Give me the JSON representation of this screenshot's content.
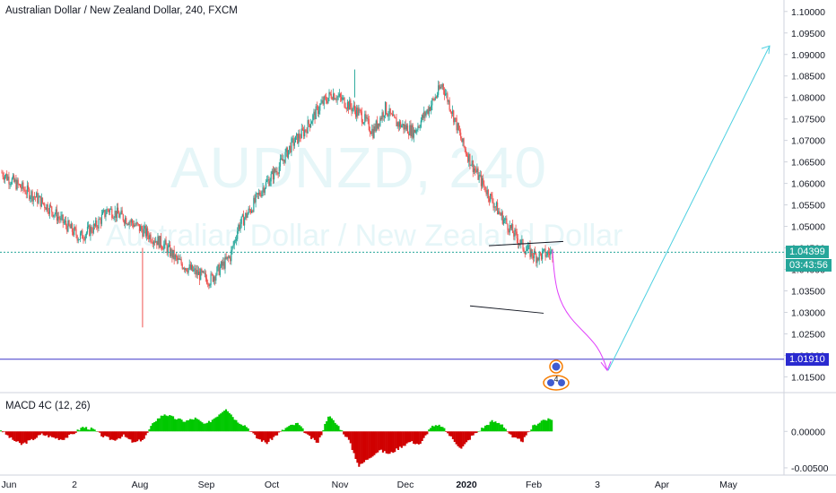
{
  "header": {
    "title": "Australian Dollar / New Zealand Dollar, 240, FXCM",
    "macd_label": "MACD 4C (12, 26)"
  },
  "watermark": {
    "symbol": "AUDNZD, 240",
    "name": "Australian Dollar / New Zealand Dollar"
  },
  "price_tags": {
    "last_price": "1.04399",
    "countdown": "03:43:56",
    "target": "1.01910"
  },
  "event_badge": "4",
  "colors": {
    "up": "#26a69a",
    "down": "#ef5350",
    "support_line": "#3f37c9",
    "projection_down": "#e040fb",
    "projection_up": "#4dd0e1",
    "macd_up": "#00c800",
    "macd_down": "#d00000",
    "last_price_tag": "#26a69a",
    "countdown_tag": "#26a69a",
    "target_tag": "#2a2ad0"
  },
  "chart_data": [
    {
      "type": "line",
      "subtype": "candlestick",
      "title": "Australian Dollar / New Zealand Dollar, 240, FXCM",
      "y_ticks": [
        "1.10000",
        "1.09500",
        "1.09000",
        "1.08500",
        "1.08000",
        "1.07500",
        "1.07000",
        "1.06500",
        "1.06000",
        "1.05500",
        "1.05000",
        "1.04500",
        "1.04000",
        "1.03500",
        "1.03000",
        "1.02500",
        "1.02000",
        "1.01500"
      ],
      "x_ticks": [
        "Jun",
        "2",
        "Aug",
        "Sep",
        "Oct",
        "Nov",
        "Dec",
        "2020",
        "Feb",
        "3",
        "Apr",
        "May"
      ],
      "ylim": [
        1.013,
        1.101
      ],
      "series": [
        {
          "x_index": [
            0,
            4,
            8,
            12,
            15,
            19,
            23,
            26,
            31,
            36,
            40,
            43,
            47,
            51,
            56,
            58,
            61,
            64,
            68,
            71,
            74,
            78,
            81,
            84,
            88,
            91,
            94,
            96,
            101,
            105,
            108,
            111,
            113,
            116,
            119,
            122,
            125,
            128,
            131,
            135
          ],
          "values": [
            1.0625,
            1.0595,
            1.057,
            1.054,
            1.051,
            1.0475,
            1.05,
            1.054,
            1.0515,
            1.048,
            1.0455,
            1.042,
            1.0395,
            1.0375,
            1.043,
            1.05,
            1.054,
            1.059,
            1.064,
            1.069,
            1.072,
            1.078,
            1.081,
            1.079,
            1.076,
            1.072,
            1.0775,
            1.0745,
            1.072,
            1.078,
            1.083,
            1.075,
            1.069,
            1.063,
            1.058,
            1.053,
            1.049,
            1.045,
            1.043,
            1.044
          ]
        }
      ],
      "annotations": {
        "support_level": 1.0191,
        "last_price": 1.04399,
        "wedge_upper": [
          1.0455,
          1.0465
        ],
        "wedge_lower": [
          1.0315,
          1.0298
        ],
        "projection_down_target": 1.0165,
        "projection_up_target": 1.092
      },
      "grid": false
    },
    {
      "type": "bar",
      "title": "MACD 4C (12, 26)",
      "y_ticks": [
        "0.00000",
        "-0.00500"
      ],
      "ylim": [
        -0.0055,
        0.0036
      ],
      "values": [
        0.0002,
        -0.001,
        -0.0018,
        -0.0012,
        -0.0004,
        -0.0008,
        -0.0011,
        -0.0004,
        0.0006,
        0.0003,
        -0.0007,
        -0.0012,
        -0.0006,
        -0.0016,
        -0.001,
        0.0014,
        0.0024,
        0.0018,
        0.0014,
        0.0018,
        0.0009,
        0.002,
        0.0032,
        0.0015,
        0.0007,
        -0.0009,
        -0.0016,
        -0.0004,
        0.0006,
        0.0011,
        -0.0006,
        -0.0016,
        0.0022,
        0.0007,
        -0.0012,
        -0.0048,
        -0.0036,
        -0.0026,
        -0.0031,
        -0.0022,
        -0.0014,
        -0.0018,
        0.0006,
        0.0008,
        -0.0008,
        -0.0024,
        -0.0007,
        0.0004,
        0.0014,
        0.001,
        -0.0009,
        -0.0013,
        0.0007,
        0.0016
      ]
    }
  ]
}
